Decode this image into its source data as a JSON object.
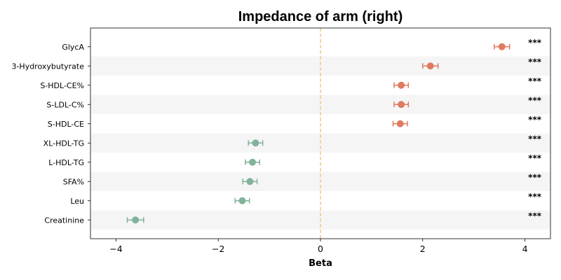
{
  "chart_data": {
    "type": "scatter",
    "title": "Impedance of arm (right)",
    "xlabel": "Beta",
    "ylabel": "",
    "xlim": [
      -4.5,
      4.5
    ],
    "xticks": [
      {
        "value": -4,
        "label": "−4"
      },
      {
        "value": -2,
        "label": "−2"
      },
      {
        "value": 0,
        "label": "0"
      },
      {
        "value": 2,
        "label": "2"
      },
      {
        "value": 4,
        "label": "4"
      }
    ],
    "reference_line": {
      "x": 0,
      "color": "#f0c982",
      "style": "dashed"
    },
    "grid": false,
    "colors": {
      "positive": "#e07a5f",
      "negative": "#81b29a",
      "band": "#f5f5f5"
    },
    "points": [
      {
        "label": "GlycA",
        "beta": 3.55,
        "ci_low": 3.4,
        "ci_high": 3.7,
        "sig": "***"
      },
      {
        "label": "3-Hydroxybutyrate",
        "beta": 2.15,
        "ci_low": 2.0,
        "ci_high": 2.3,
        "sig": "***"
      },
      {
        "label": "S-HDL-CE%",
        "beta": 1.58,
        "ci_low": 1.44,
        "ci_high": 1.72,
        "sig": "***"
      },
      {
        "label": "S-LDL-C%",
        "beta": 1.58,
        "ci_low": 1.44,
        "ci_high": 1.72,
        "sig": "***"
      },
      {
        "label": "S-HDL-CE",
        "beta": 1.56,
        "ci_low": 1.42,
        "ci_high": 1.7,
        "sig": "***"
      },
      {
        "label": "XL-HDL-TG",
        "beta": -1.27,
        "ci_low": -1.41,
        "ci_high": -1.13,
        "sig": "***"
      },
      {
        "label": "L-HDL-TG",
        "beta": -1.33,
        "ci_low": -1.47,
        "ci_high": -1.19,
        "sig": "***"
      },
      {
        "label": "SFA%",
        "beta": -1.38,
        "ci_low": -1.52,
        "ci_high": -1.24,
        "sig": "***"
      },
      {
        "label": "Leu",
        "beta": -1.53,
        "ci_low": -1.67,
        "ci_high": -1.39,
        "sig": "***"
      },
      {
        "label": "Creatinine",
        "beta": -3.62,
        "ci_low": -3.78,
        "ci_high": -3.46,
        "sig": "***"
      }
    ]
  }
}
